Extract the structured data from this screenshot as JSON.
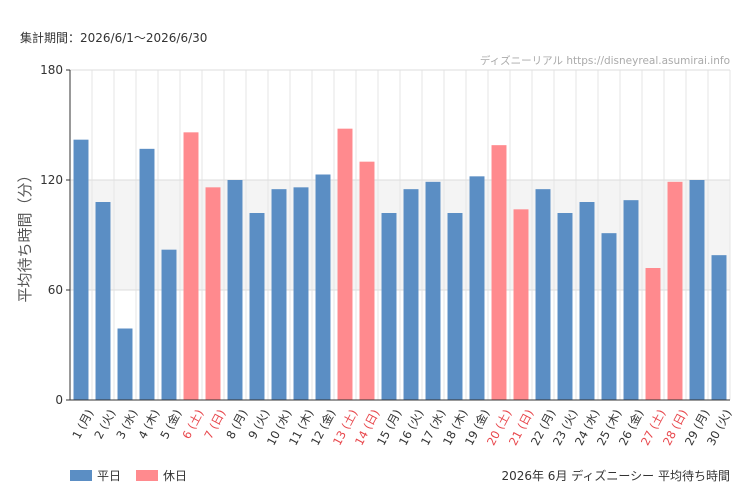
{
  "header": {
    "period": "集計期間：2026/6/1〜2026/6/30"
  },
  "footer": {
    "title": "2026年 6月 ディズニーシー 平均待ち時間"
  },
  "legend": [
    {
      "label": "平日",
      "color": "#5b8ec4"
    },
    {
      "label": "休日",
      "color": "#ff8a8e"
    }
  ],
  "chart_data": {
    "type": "bar",
    "ylabel": "平均待ち時間（分）",
    "ylim": [
      0,
      180
    ],
    "yticks": [
      0,
      60,
      120,
      180
    ],
    "watermark": "ディズニーリアル https://disneyreal.asumirai.info",
    "colors": {
      "weekday": "#5b8ec4",
      "holiday": "#ff8a8e",
      "holiday_label": "#e8474c"
    },
    "categories": [
      "1 (月)",
      "2 (火)",
      "3 (水)",
      "4 (木)",
      "5 (金)",
      "6 (土)",
      "7 (日)",
      "8 (月)",
      "9 (火)",
      "10 (水)",
      "11 (木)",
      "12 (金)",
      "13 (土)",
      "14 (日)",
      "15 (月)",
      "16 (火)",
      "17 (水)",
      "18 (木)",
      "19 (金)",
      "20 (土)",
      "21 (日)",
      "22 (月)",
      "23 (火)",
      "24 (水)",
      "25 (木)",
      "26 (金)",
      "27 (土)",
      "28 (日)",
      "29 (月)",
      "30 (火)"
    ],
    "values": [
      142,
      108,
      39,
      137,
      82,
      146,
      116,
      120,
      102,
      115,
      116,
      123,
      148,
      130,
      102,
      115,
      119,
      102,
      122,
      139,
      104,
      115,
      102,
      108,
      91,
      109,
      72,
      119,
      120,
      79
    ],
    "holiday": [
      false,
      false,
      false,
      false,
      false,
      true,
      true,
      false,
      false,
      false,
      false,
      false,
      true,
      true,
      false,
      false,
      false,
      false,
      false,
      true,
      true,
      false,
      false,
      false,
      false,
      false,
      true,
      true,
      false,
      false
    ]
  }
}
